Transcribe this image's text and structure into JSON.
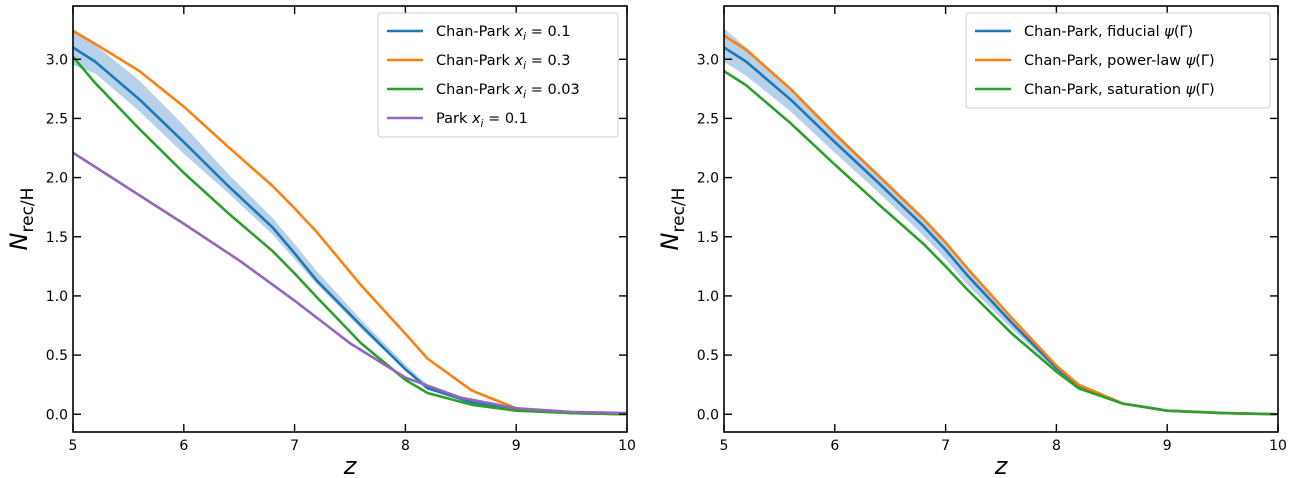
{
  "chart_data": [
    {
      "type": "line",
      "xlabel": "z",
      "ylabel": "N_rec/H",
      "xlim": [
        5,
        10
      ],
      "ylim": [
        -0.15,
        3.45
      ],
      "xticks": [
        5,
        6,
        7,
        8,
        9,
        10
      ],
      "yticks": [
        0.0,
        0.5,
        1.0,
        1.5,
        2.0,
        2.5,
        3.0
      ],
      "xtick_labels": [
        "5",
        "6",
        "7",
        "8",
        "9",
        "10"
      ],
      "ytick_labels": [
        "0.0",
        "0.5",
        "1.0",
        "1.5",
        "2.0",
        "2.5",
        "3.0"
      ],
      "legend_position": "top-right",
      "band": {
        "color": "#aac9e6",
        "x": [
          5,
          5.2,
          5.6,
          6,
          6.4,
          6.8,
          7,
          7.2,
          7.6,
          8,
          8.2,
          8.6,
          9,
          9.5,
          10
        ],
        "upper": [
          3.25,
          3.12,
          2.82,
          2.44,
          2.03,
          1.66,
          1.44,
          1.21,
          0.8,
          0.42,
          0.25,
          0.12,
          0.05,
          0.02,
          0.01
        ],
        "lower": [
          2.95,
          2.88,
          2.56,
          2.2,
          1.87,
          1.52,
          1.31,
          1.1,
          0.72,
          0.37,
          0.21,
          0.09,
          0.03,
          0.01,
          0.0
        ]
      },
      "series": [
        {
          "name": "Chan-Park $x_i = 0.1$",
          "legend_main": "Chan-Park ",
          "legend_var": "x",
          "legend_sub": "i",
          "legend_rest": " = 0.1",
          "color": "#1f77b4",
          "x": [
            5,
            5.2,
            5.6,
            6,
            6.4,
            6.8,
            7,
            7.2,
            7.6,
            8,
            8.2,
            8.6,
            9,
            9.5,
            10
          ],
          "y": [
            3.1,
            2.98,
            2.66,
            2.3,
            1.93,
            1.58,
            1.36,
            1.13,
            0.75,
            0.38,
            0.22,
            0.1,
            0.04,
            0.01,
            0.0
          ]
        },
        {
          "name": "Chan-Park $x_i = 0.3$",
          "legend_main": "Chan-Park ",
          "legend_var": "x",
          "legend_sub": "i",
          "legend_rest": " = 0.3",
          "color": "#ff7f0e",
          "x": [
            5,
            5.2,
            5.6,
            6,
            6.4,
            6.8,
            7,
            7.2,
            7.6,
            8,
            8.2,
            8.6,
            9,
            9.5,
            10
          ],
          "y": [
            3.24,
            3.13,
            2.9,
            2.6,
            2.26,
            1.93,
            1.74,
            1.54,
            1.09,
            0.68,
            0.47,
            0.2,
            0.05,
            0.01,
            0.0
          ]
        },
        {
          "name": "Chan-Park $x_i = 0.03$",
          "legend_main": "Chan-Park ",
          "legend_var": "x",
          "legend_sub": "i",
          "legend_rest": " = 0.03",
          "color": "#2ca02c",
          "x": [
            5,
            5.2,
            5.6,
            6,
            6.4,
            6.8,
            7,
            7.2,
            7.6,
            8,
            8.2,
            8.6,
            9,
            9.5,
            10
          ],
          "y": [
            3.02,
            2.8,
            2.41,
            2.04,
            1.7,
            1.38,
            1.19,
            0.99,
            0.6,
            0.29,
            0.18,
            0.08,
            0.03,
            0.01,
            0.0
          ]
        },
        {
          "name": "Park $x_i = 0.1$",
          "legend_main": "Park ",
          "legend_var": "x",
          "legend_sub": "i",
          "legend_rest": " = 0.1",
          "color": "#9467bd",
          "x": [
            5,
            5.5,
            6,
            6.5,
            7,
            7.5,
            8,
            8.5,
            9,
            9.5,
            10
          ],
          "y": [
            2.21,
            1.91,
            1.61,
            1.3,
            0.96,
            0.6,
            0.31,
            0.14,
            0.05,
            0.02,
            0.01
          ]
        }
      ]
    },
    {
      "type": "line",
      "xlabel": "z",
      "ylabel": "N_rec/H",
      "xlim": [
        5,
        10
      ],
      "ylim": [
        -0.15,
        3.45
      ],
      "xticks": [
        5,
        6,
        7,
        8,
        9,
        10
      ],
      "yticks": [
        0.0,
        0.5,
        1.0,
        1.5,
        2.0,
        2.5,
        3.0
      ],
      "xtick_labels": [
        "5",
        "6",
        "7",
        "8",
        "9",
        "10"
      ],
      "ytick_labels": [
        "0.0",
        "0.5",
        "1.0",
        "1.5",
        "2.0",
        "2.5",
        "3.0"
      ],
      "legend_position": "top-right",
      "band": {
        "color": "#aac9e6",
        "x": [
          5,
          5.2,
          5.6,
          6,
          6.4,
          6.8,
          7,
          7.2,
          7.6,
          8,
          8.2,
          8.6,
          9,
          9.5,
          10
        ],
        "upper": [
          3.26,
          3.1,
          2.76,
          2.38,
          2.03,
          1.67,
          1.47,
          1.24,
          0.81,
          0.42,
          0.26,
          0.1,
          0.04,
          0.01,
          0.0
        ],
        "lower": [
          2.98,
          2.86,
          2.56,
          2.21,
          1.87,
          1.51,
          1.31,
          1.09,
          0.72,
          0.37,
          0.23,
          0.08,
          0.03,
          0.01,
          0.0
        ]
      },
      "series": [
        {
          "name": "Chan-Park, fiducial $\\psi(\\Gamma)$",
          "legend_main": "Chan-Park, fiducial ",
          "legend_var": "ψ",
          "legend_sub": "",
          "legend_rest": "(Γ)",
          "color": "#1f77b4",
          "x": [
            5,
            5.2,
            5.6,
            6,
            6.4,
            6.8,
            7,
            7.2,
            7.6,
            8,
            8.2,
            8.6,
            9,
            9.5,
            10
          ],
          "y": [
            3.1,
            2.98,
            2.66,
            2.3,
            1.95,
            1.59,
            1.39,
            1.17,
            0.77,
            0.39,
            0.24,
            0.09,
            0.03,
            0.01,
            0.0
          ]
        },
        {
          "name": "Chan-Park, power-law $\\psi(\\Gamma)$",
          "legend_main": "Chan-Park, power-law ",
          "legend_var": "ψ",
          "legend_sub": "",
          "legend_rest": "(Γ)",
          "color": "#ff7f0e",
          "x": [
            5,
            5.2,
            5.6,
            6,
            6.4,
            6.8,
            7,
            7.2,
            7.6,
            8,
            8.2,
            8.6,
            9,
            9.5,
            10
          ],
          "y": [
            3.2,
            3.08,
            2.75,
            2.37,
            2.01,
            1.65,
            1.45,
            1.23,
            0.81,
            0.41,
            0.25,
            0.09,
            0.03,
            0.01,
            0.0
          ]
        },
        {
          "name": "Chan-Park, saturation $\\psi(\\Gamma)$",
          "legend_main": "Chan-Park, saturation ",
          "legend_var": "ψ",
          "legend_sub": "",
          "legend_rest": "(Γ)",
          "color": "#2ca02c",
          "x": [
            5,
            5.2,
            5.6,
            6,
            6.4,
            6.8,
            7,
            7.2,
            7.6,
            8,
            8.2,
            8.6,
            9,
            9.5,
            10
          ],
          "y": [
            2.9,
            2.78,
            2.46,
            2.11,
            1.77,
            1.44,
            1.25,
            1.05,
            0.68,
            0.36,
            0.22,
            0.09,
            0.03,
            0.01,
            0.0
          ]
        }
      ]
    }
  ]
}
